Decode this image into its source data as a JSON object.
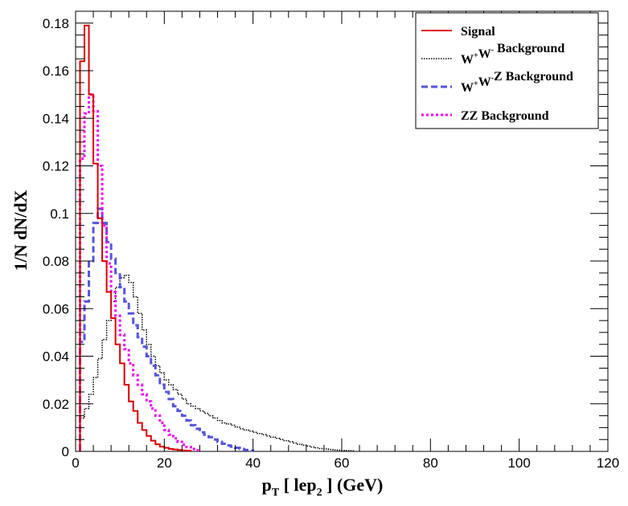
{
  "chart_data": {
    "type": "line",
    "title": "",
    "xlabel": "p_T [ lep_2 ] (GeV)",
    "xlabel_parts": {
      "p": "p",
      "sub_T": "T",
      "mid": " [ lep",
      "sub_2": "2",
      "end": " ] (GeV)"
    },
    "ylabel": "1/N dN/dX",
    "xlim": [
      0,
      120
    ],
    "ylim": [
      0,
      0.185
    ],
    "xticks": [
      0,
      20,
      40,
      60,
      80,
      100,
      120
    ],
    "xtick_labels": [
      "0",
      "20",
      "40",
      "60",
      "80",
      "100",
      "120"
    ],
    "yticks": [
      0,
      0.02,
      0.04,
      0.06,
      0.08,
      0.1,
      0.12,
      0.14,
      0.16,
      0.18
    ],
    "ytick_labels": [
      "0",
      "0.02",
      "0.04",
      "0.06",
      "0.08",
      "0.1",
      "0.12",
      "0.14",
      "0.16",
      "0.18"
    ],
    "bin_width": 1,
    "legend_position": "top-right",
    "series": [
      {
        "name": "Signal",
        "legend_parts": [
          {
            "t": "Signal"
          }
        ],
        "color": "#dd0000",
        "dash": "",
        "width": 2,
        "x_start": 1,
        "values": [
          0.164,
          0.179,
          0.15,
          0.121,
          0.098,
          0.08,
          0.067,
          0.056,
          0.045,
          0.037,
          0.028,
          0.021,
          0.017,
          0.012,
          0.009,
          0.0065,
          0.0045,
          0.003,
          0.002,
          0.0015,
          0.001,
          0.0008,
          0.0006,
          0.0004,
          0.0003
        ]
      },
      {
        "name": "W+W- Background",
        "legend_parts": [
          {
            "t": "W"
          },
          {
            "t": "+",
            "sup": true
          },
          {
            "t": "W"
          },
          {
            "t": "-",
            "sup": true
          },
          {
            "t": " Background"
          }
        ],
        "color": "#000000",
        "dash": "1.5,1.5",
        "width": 1.5,
        "x_start": 1,
        "values": [
          0.014,
          0.018,
          0.024,
          0.031,
          0.039,
          0.047,
          0.055,
          0.063,
          0.069,
          0.073,
          0.074,
          0.071,
          0.065,
          0.058,
          0.051,
          0.045,
          0.04,
          0.036,
          0.033,
          0.03,
          0.028,
          0.026,
          0.024,
          0.022,
          0.02,
          0.019,
          0.018,
          0.017,
          0.016,
          0.015,
          0.014,
          0.013,
          0.012,
          0.0115,
          0.011,
          0.0102,
          0.0095,
          0.009,
          0.0085,
          0.008,
          0.0075,
          0.007,
          0.0065,
          0.006,
          0.0055,
          0.005,
          0.0045,
          0.004,
          0.0035,
          0.003,
          0.0026,
          0.0022,
          0.0018,
          0.0015,
          0.0012,
          0.001,
          0.0008,
          0.0006,
          0.0005,
          0.0004,
          0.0003,
          0.0002
        ]
      },
      {
        "name": "W+W-Z Background",
        "legend_parts": [
          {
            "t": "W"
          },
          {
            "t": "+",
            "sup": true
          },
          {
            "t": "W"
          },
          {
            "t": "-",
            "sup": true
          },
          {
            "t": "Z Background"
          }
        ],
        "color": "#5555dd",
        "dash": "8,4",
        "width": 3,
        "x_start": 1,
        "values": [
          0.046,
          0.063,
          0.08,
          0.096,
          0.102,
          0.096,
          0.088,
          0.081,
          0.075,
          0.069,
          0.063,
          0.058,
          0.053,
          0.048,
          0.044,
          0.04,
          0.036,
          0.032,
          0.028,
          0.025,
          0.022,
          0.019,
          0.017,
          0.015,
          0.013,
          0.011,
          0.0095,
          0.008,
          0.007,
          0.006,
          0.005,
          0.004,
          0.0032,
          0.0025,
          0.002,
          0.0015,
          0.001,
          0.0006,
          0.0003
        ]
      },
      {
        "name": "ZZ Background",
        "legend_parts": [
          {
            "t": "ZZ Background"
          }
        ],
        "color": "#ee00ee",
        "dash": "3,3",
        "width": 3,
        "x_start": 1,
        "values": [
          0.123,
          0.142,
          0.15,
          0.143,
          0.12,
          0.095,
          0.079,
          0.067,
          0.057,
          0.049,
          0.043,
          0.037,
          0.032,
          0.028,
          0.024,
          0.021,
          0.018,
          0.015,
          0.012,
          0.009,
          0.007,
          0.0055,
          0.004,
          0.0028,
          0.0018,
          0.001,
          0.0005
        ]
      }
    ]
  }
}
